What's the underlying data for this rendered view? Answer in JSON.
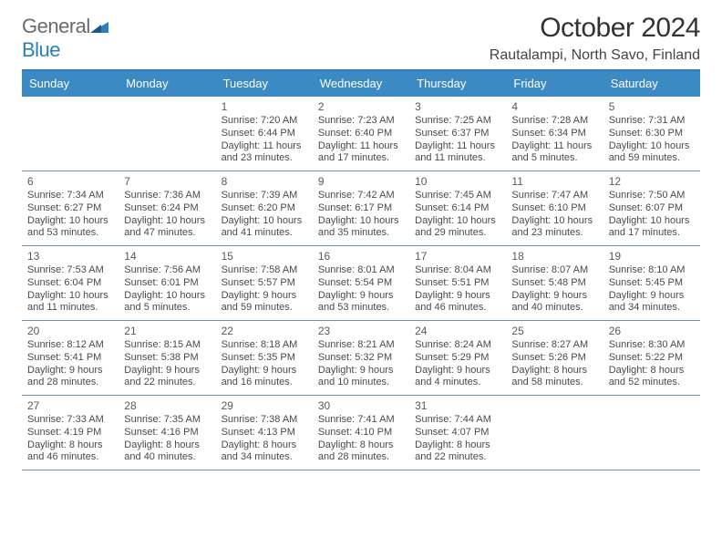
{
  "brand": {
    "part1": "General",
    "part2": "Blue"
  },
  "header": {
    "month_title": "October 2024",
    "location": "Rautalampi, North Savo, Finland"
  },
  "colors": {
    "accent": "#3b8ac4",
    "divider": "#6b93b3"
  },
  "day_labels": [
    "Sunday",
    "Monday",
    "Tuesday",
    "Wednesday",
    "Thursday",
    "Friday",
    "Saturday"
  ],
  "weeks": [
    [
      null,
      null,
      {
        "n": "1",
        "sr": "Sunrise: 7:20 AM",
        "ss": "Sunset: 6:44 PM",
        "dl": "Daylight: 11 hours and 23 minutes."
      },
      {
        "n": "2",
        "sr": "Sunrise: 7:23 AM",
        "ss": "Sunset: 6:40 PM",
        "dl": "Daylight: 11 hours and 17 minutes."
      },
      {
        "n": "3",
        "sr": "Sunrise: 7:25 AM",
        "ss": "Sunset: 6:37 PM",
        "dl": "Daylight: 11 hours and 11 minutes."
      },
      {
        "n": "4",
        "sr": "Sunrise: 7:28 AM",
        "ss": "Sunset: 6:34 PM",
        "dl": "Daylight: 11 hours and 5 minutes."
      },
      {
        "n": "5",
        "sr": "Sunrise: 7:31 AM",
        "ss": "Sunset: 6:30 PM",
        "dl": "Daylight: 10 hours and 59 minutes."
      }
    ],
    [
      {
        "n": "6",
        "sr": "Sunrise: 7:34 AM",
        "ss": "Sunset: 6:27 PM",
        "dl": "Daylight: 10 hours and 53 minutes."
      },
      {
        "n": "7",
        "sr": "Sunrise: 7:36 AM",
        "ss": "Sunset: 6:24 PM",
        "dl": "Daylight: 10 hours and 47 minutes."
      },
      {
        "n": "8",
        "sr": "Sunrise: 7:39 AM",
        "ss": "Sunset: 6:20 PM",
        "dl": "Daylight: 10 hours and 41 minutes."
      },
      {
        "n": "9",
        "sr": "Sunrise: 7:42 AM",
        "ss": "Sunset: 6:17 PM",
        "dl": "Daylight: 10 hours and 35 minutes."
      },
      {
        "n": "10",
        "sr": "Sunrise: 7:45 AM",
        "ss": "Sunset: 6:14 PM",
        "dl": "Daylight: 10 hours and 29 minutes."
      },
      {
        "n": "11",
        "sr": "Sunrise: 7:47 AM",
        "ss": "Sunset: 6:10 PM",
        "dl": "Daylight: 10 hours and 23 minutes."
      },
      {
        "n": "12",
        "sr": "Sunrise: 7:50 AM",
        "ss": "Sunset: 6:07 PM",
        "dl": "Daylight: 10 hours and 17 minutes."
      }
    ],
    [
      {
        "n": "13",
        "sr": "Sunrise: 7:53 AM",
        "ss": "Sunset: 6:04 PM",
        "dl": "Daylight: 10 hours and 11 minutes."
      },
      {
        "n": "14",
        "sr": "Sunrise: 7:56 AM",
        "ss": "Sunset: 6:01 PM",
        "dl": "Daylight: 10 hours and 5 minutes."
      },
      {
        "n": "15",
        "sr": "Sunrise: 7:58 AM",
        "ss": "Sunset: 5:57 PM",
        "dl": "Daylight: 9 hours and 59 minutes."
      },
      {
        "n": "16",
        "sr": "Sunrise: 8:01 AM",
        "ss": "Sunset: 5:54 PM",
        "dl": "Daylight: 9 hours and 53 minutes."
      },
      {
        "n": "17",
        "sr": "Sunrise: 8:04 AM",
        "ss": "Sunset: 5:51 PM",
        "dl": "Daylight: 9 hours and 46 minutes."
      },
      {
        "n": "18",
        "sr": "Sunrise: 8:07 AM",
        "ss": "Sunset: 5:48 PM",
        "dl": "Daylight: 9 hours and 40 minutes."
      },
      {
        "n": "19",
        "sr": "Sunrise: 8:10 AM",
        "ss": "Sunset: 5:45 PM",
        "dl": "Daylight: 9 hours and 34 minutes."
      }
    ],
    [
      {
        "n": "20",
        "sr": "Sunrise: 8:12 AM",
        "ss": "Sunset: 5:41 PM",
        "dl": "Daylight: 9 hours and 28 minutes."
      },
      {
        "n": "21",
        "sr": "Sunrise: 8:15 AM",
        "ss": "Sunset: 5:38 PM",
        "dl": "Daylight: 9 hours and 22 minutes."
      },
      {
        "n": "22",
        "sr": "Sunrise: 8:18 AM",
        "ss": "Sunset: 5:35 PM",
        "dl": "Daylight: 9 hours and 16 minutes."
      },
      {
        "n": "23",
        "sr": "Sunrise: 8:21 AM",
        "ss": "Sunset: 5:32 PM",
        "dl": "Daylight: 9 hours and 10 minutes."
      },
      {
        "n": "24",
        "sr": "Sunrise: 8:24 AM",
        "ss": "Sunset: 5:29 PM",
        "dl": "Daylight: 9 hours and 4 minutes."
      },
      {
        "n": "25",
        "sr": "Sunrise: 8:27 AM",
        "ss": "Sunset: 5:26 PM",
        "dl": "Daylight: 8 hours and 58 minutes."
      },
      {
        "n": "26",
        "sr": "Sunrise: 8:30 AM",
        "ss": "Sunset: 5:22 PM",
        "dl": "Daylight: 8 hours and 52 minutes."
      }
    ],
    [
      {
        "n": "27",
        "sr": "Sunrise: 7:33 AM",
        "ss": "Sunset: 4:19 PM",
        "dl": "Daylight: 8 hours and 46 minutes."
      },
      {
        "n": "28",
        "sr": "Sunrise: 7:35 AM",
        "ss": "Sunset: 4:16 PM",
        "dl": "Daylight: 8 hours and 40 minutes."
      },
      {
        "n": "29",
        "sr": "Sunrise: 7:38 AM",
        "ss": "Sunset: 4:13 PM",
        "dl": "Daylight: 8 hours and 34 minutes."
      },
      {
        "n": "30",
        "sr": "Sunrise: 7:41 AM",
        "ss": "Sunset: 4:10 PM",
        "dl": "Daylight: 8 hours and 28 minutes."
      },
      {
        "n": "31",
        "sr": "Sunrise: 7:44 AM",
        "ss": "Sunset: 4:07 PM",
        "dl": "Daylight: 8 hours and 22 minutes."
      },
      null,
      null
    ]
  ]
}
